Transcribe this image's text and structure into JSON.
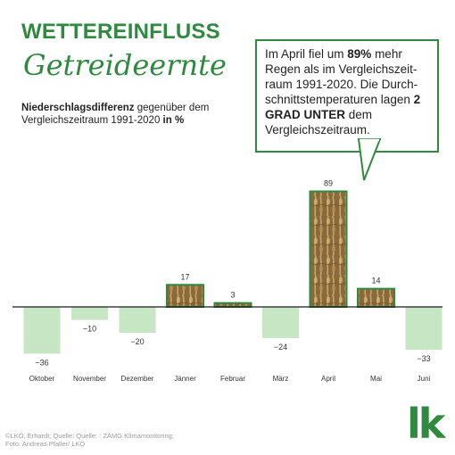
{
  "header": {
    "title": "WETTEREINFLUSS",
    "script_title": "Getreideernte",
    "subtitle_bold": "Niederschlagsdifferenz",
    "subtitle_rest": " gegenüber dem Vergleichszeitraum 1991-2020 ",
    "subtitle_unit": "in %"
  },
  "callout": {
    "part1": "Im April fiel um ",
    "highlight1": "89%",
    "part2": " mehr Regen als im Vergleichszeit-raum 1991-2020. Die Durch-schnittstemperaturen lagen ",
    "highlight2": "2 GRAD UNTER",
    "part3": " dem Vergleichszeitraum."
  },
  "colors": {
    "brand_green": "#2e8a3f",
    "negative_bar": "#c7e6c4",
    "positive_bar": "#8a6a3c"
  },
  "chart_data": {
    "type": "bar",
    "categories": [
      "Oktober",
      "November",
      "Dezember",
      "Jänner",
      "Februar",
      "März",
      "April",
      "Mai",
      "Juni"
    ],
    "values": [
      -36,
      -10,
      -20,
      17,
      3,
      -24,
      89,
      14,
      -33
    ],
    "value_labels": [
      "−36",
      "−10",
      "−20",
      "17",
      "3",
      "−24",
      "89",
      "14",
      "−33"
    ],
    "grid": false
  },
  "footer": {
    "line1": "©LKÖ, Erhardt; Quelle: Quelle: : ZAMG Klimamonitoring;",
    "line2": "Foto: Andreas Pfaller/ LKÖ"
  },
  "logo": {
    "text": "lk"
  }
}
